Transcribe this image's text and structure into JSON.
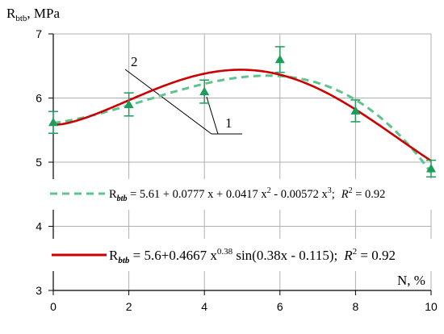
{
  "chart_data": {
    "type": "line",
    "ylabel": {
      "main": "R",
      "sub": "btb",
      "rest": ", MPa"
    },
    "xlabel": "N, %",
    "xlim": [
      0,
      10
    ],
    "ylim": [
      3,
      7
    ],
    "x_ticks": [
      "0",
      "2",
      "4",
      "6",
      "8",
      "10"
    ],
    "y_ticks": [
      "3",
      "4",
      "5",
      "6",
      "7"
    ],
    "grid": true,
    "points": {
      "color": "#1e9d5a",
      "x": [
        0,
        2,
        4,
        6,
        8,
        10
      ],
      "y": [
        5.62,
        5.9,
        6.1,
        6.6,
        5.8,
        4.9
      ],
      "err": [
        0.17,
        0.18,
        0.18,
        0.2,
        0.17,
        0.13
      ]
    },
    "series": [
      {
        "name": "1",
        "color": "#cc0000",
        "style": "solid",
        "formula": {
          "r": "R",
          "sub": "btb",
          "a": " = 5.6+0.4667 x",
          "sup1": "0.38",
          "b": " sin(0.38x - 0.115);",
          "r2": "R",
          "sup2": "2",
          "c": " = 0.92"
        },
        "coef": [
          5.6,
          0.4667,
          0.38,
          0.38,
          -0.115
        ]
      },
      {
        "name": "2",
        "color": "#5cc48c",
        "style": "dashed",
        "formula": {
          "r": "R",
          "sub": "btb",
          "a": " = 5.61 + 0.0777 x + 0.0417 x",
          "sup1": "2",
          "b": " - 0.00572 x",
          "sup2": "3",
          "c": ";",
          "r2": "R",
          "sup3": "2",
          "d": " = 0.92"
        },
        "coef": [
          5.61,
          0.0777,
          0.0417,
          -0.00572
        ]
      }
    ]
  }
}
